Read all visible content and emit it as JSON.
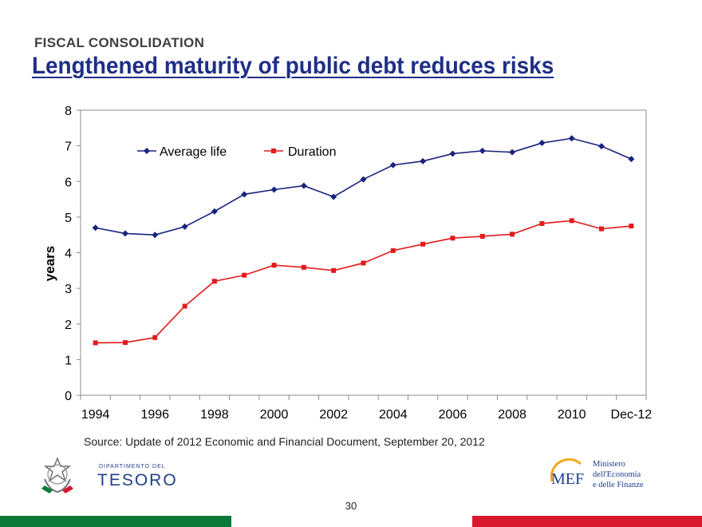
{
  "header": {
    "kicker": "FISCAL CONSOLIDATION",
    "title": "Lengthened maturity of public debt reduces risks"
  },
  "chart_data": {
    "type": "line",
    "ylabel": "years",
    "xlabel": "",
    "ylim": [
      0,
      8
    ],
    "yticks": [
      "0",
      "1",
      "2",
      "3",
      "4",
      "5",
      "6",
      "7",
      "8"
    ],
    "categories": [
      "1994",
      "1995",
      "1996",
      "1997",
      "1998",
      "1999",
      "2000",
      "2001",
      "2002",
      "2003",
      "2004",
      "2005",
      "2006",
      "2007",
      "2008",
      "2009",
      "2010",
      "2011",
      "Dec-12"
    ],
    "xtick_labels": [
      "1994",
      "1996",
      "1998",
      "2000",
      "2002",
      "2004",
      "2006",
      "2008",
      "2010",
      "Dec-12"
    ],
    "legend_position": "top-left",
    "grid": false,
    "series": [
      {
        "name": "Average life",
        "color": "#1a237e",
        "marker": "diamond",
        "values": [
          4.7,
          4.54,
          4.5,
          4.73,
          5.16,
          5.64,
          5.77,
          5.88,
          5.57,
          6.06,
          6.46,
          6.57,
          6.78,
          6.86,
          6.82,
          7.08,
          7.21,
          6.99,
          6.63
        ]
      },
      {
        "name": "Duration",
        "color": "#e31a1c",
        "marker": "square",
        "values": [
          1.47,
          1.48,
          1.62,
          2.5,
          3.2,
          3.37,
          3.65,
          3.59,
          3.5,
          3.71,
          4.06,
          4.24,
          4.41,
          4.46,
          4.52,
          4.82,
          4.9,
          4.67,
          4.75
        ]
      }
    ]
  },
  "footer": {
    "source": "Source: Update of 2012 Economic and Financial Document, September 20, 2012",
    "page_number": "30",
    "left_logo_small": "DIPARTIMENTO DEL",
    "left_logo_big": "TESORO",
    "right_logo_mark": "MEF",
    "right_logo_lines": [
      "Ministero",
      "dell'Economia",
      "e delle Finanze"
    ],
    "brand_green": "#0b7a3b",
    "brand_red": "#d7192d"
  }
}
